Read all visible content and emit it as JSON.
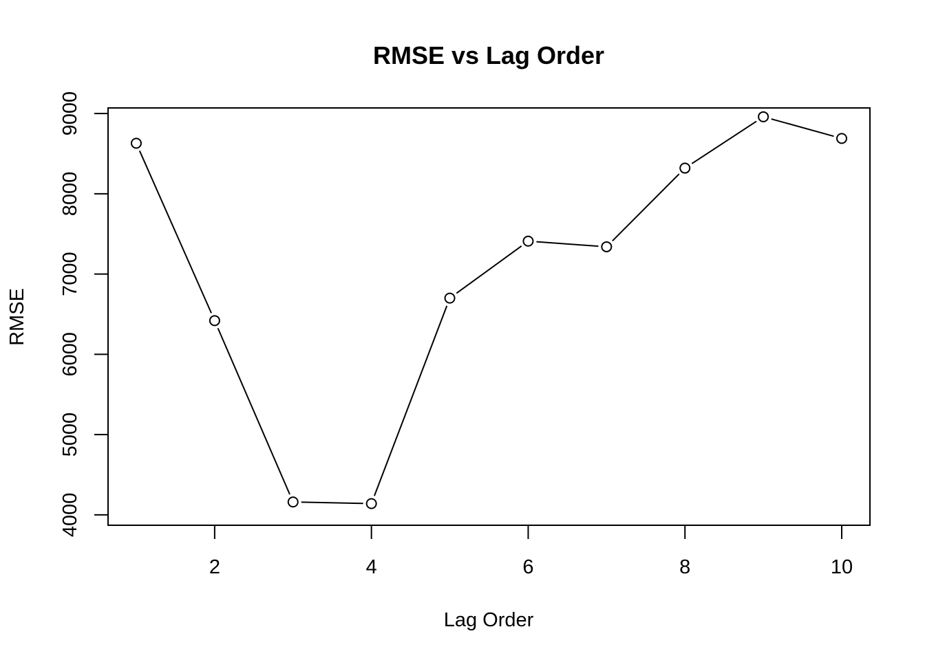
{
  "chart_data": {
    "type": "line",
    "title": "RMSE vs Lag Order",
    "xlabel": "Lag Order",
    "ylabel": "RMSE",
    "x": [
      1,
      2,
      3,
      4,
      5,
      6,
      7,
      8,
      9,
      10
    ],
    "y": [
      8630,
      6420,
      4160,
      4140,
      6700,
      7410,
      7340,
      8320,
      8960,
      8690
    ],
    "xlim": [
      0.64,
      10.36
    ],
    "ylim": [
      3870,
      9070
    ],
    "xticks": [
      2,
      4,
      6,
      8,
      10
    ],
    "yticks": [
      4000,
      5000,
      6000,
      7000,
      8000,
      9000
    ],
    "marker": "open-circle",
    "grid": false,
    "line_color": "#000000",
    "marker_color": "#000000"
  }
}
